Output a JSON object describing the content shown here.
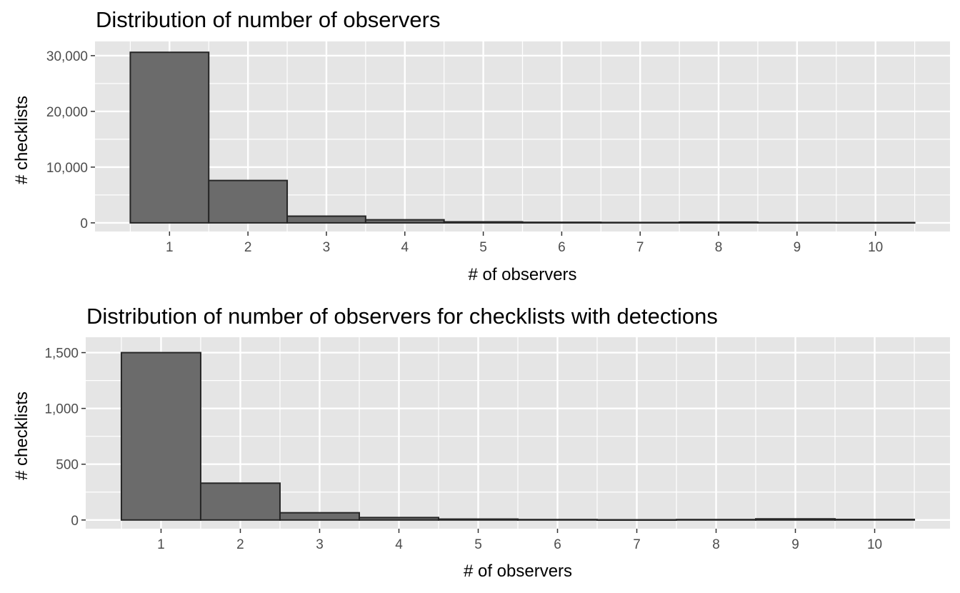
{
  "colors": {
    "panel_bg": "#e5e5e5",
    "grid_major": "#ffffff",
    "bar_fill": "#6b6b6b",
    "bar_stroke": "#262626",
    "tick_text": "#4d4d4d",
    "tick_mark": "#333333"
  },
  "chart_data": [
    {
      "type": "bar",
      "title": "Distribution of number of observers",
      "xlabel": "# of observers",
      "ylabel": "# checklists",
      "categories": [
        "1",
        "2",
        "3",
        "4",
        "5",
        "6",
        "7",
        "8",
        "9",
        "10"
      ],
      "x": [
        1,
        2,
        3,
        4,
        5,
        6,
        7,
        8,
        9,
        10
      ],
      "values": [
        30600,
        7600,
        1200,
        550,
        180,
        100,
        70,
        130,
        60,
        50
      ],
      "xlim": [
        0.5,
        10.5
      ],
      "ylim": [
        0,
        31000
      ],
      "yticks": [
        0,
        10000,
        20000,
        30000
      ],
      "ytick_labels": [
        "0",
        "10,000",
        "20,000",
        "30,000"
      ],
      "grid": true,
      "legend": "none"
    },
    {
      "type": "bar",
      "title": "Distribution of number of observers for checklists with detections",
      "xlabel": "# of observers",
      "ylabel": "# checklists",
      "categories": [
        "1",
        "2",
        "3",
        "4",
        "5",
        "6",
        "7",
        "8",
        "9",
        "10"
      ],
      "x": [
        1,
        2,
        3,
        4,
        5,
        6,
        7,
        8,
        9,
        10
      ],
      "values": [
        1500,
        330,
        65,
        22,
        8,
        4,
        2,
        4,
        10,
        5
      ],
      "xlim": [
        0.5,
        10.5
      ],
      "ylim": [
        0,
        1560
      ],
      "yticks": [
        0,
        500,
        1000,
        1500
      ],
      "ytick_labels": [
        "0",
        "500",
        "1,000",
        "1,500"
      ],
      "grid": true,
      "legend": "none"
    }
  ]
}
